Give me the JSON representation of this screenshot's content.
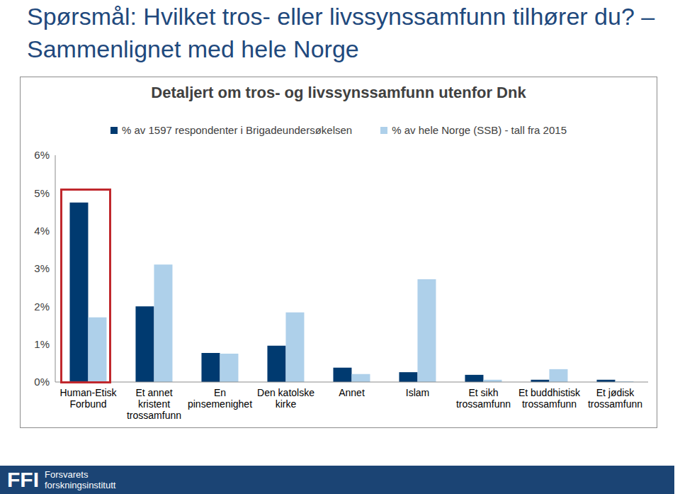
{
  "chart_data": {
    "type": "bar",
    "title": "Spørsmål: Hvilket tros- eller livssynssamfunn tilhører du? – Sammenlignet med hele Norge",
    "subtitle": "Detaljert om tros- og livssynssamfunn utenfor Dnk",
    "categories": [
      "Human-Etisk Forbund",
      "Et annet kristent trossamfunn",
      "En pinsemenighet",
      "Den katolske kirke",
      "Annet",
      "Islam",
      "Et sikh trossamfunn",
      "Et buddhistisk trossamfunn",
      "Et jødisk trossamfunn"
    ],
    "series": [
      {
        "name": "% av 1597 respondenter i Brigadeundersøkelsen",
        "color": "#003a70",
        "values": [
          4.75,
          2.0,
          0.77,
          0.96,
          0.38,
          0.26,
          0.19,
          0.06,
          0.06
        ]
      },
      {
        "name": "% av hele Norge (SSB) - tall fra 2015",
        "color": "#aed0ea",
        "values": [
          1.71,
          3.11,
          0.75,
          1.84,
          0.21,
          2.72,
          0.06,
          0.34,
          0.02
        ]
      }
    ],
    "ylim": [
      0,
      6
    ],
    "yticks": [
      {
        "value": 0,
        "label": "0%"
      },
      {
        "value": 1,
        "label": "1%"
      },
      {
        "value": 2,
        "label": "2%"
      },
      {
        "value": 3,
        "label": "3%"
      },
      {
        "value": 4,
        "label": "4%"
      },
      {
        "value": 5,
        "label": "5%"
      },
      {
        "value": 6,
        "label": "6%"
      }
    ],
    "grid": false,
    "legend": "top",
    "annotations": [
      "FFI",
      "Forsvarets",
      "forskningsinstitutt"
    ]
  }
}
